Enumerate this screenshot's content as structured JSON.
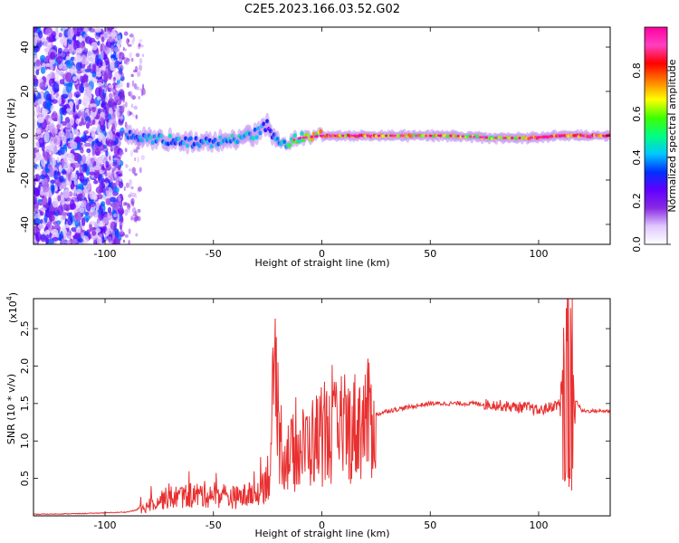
{
  "figure": {
    "title": "C2E5.2023.166.03.52.G02"
  },
  "chart_data": [
    {
      "type": "heatmap",
      "name": "spectrogram",
      "xlabel": "Height of straight line (km)",
      "ylabel": "Frequency (Hz)",
      "xlim": [
        -133,
        133
      ],
      "ylim": [
        -49,
        49
      ],
      "x_ticks": [
        -100,
        -50,
        0,
        50,
        100
      ],
      "y_ticks": [
        -40,
        -20,
        0,
        20,
        40
      ],
      "colorbar": {
        "label": "Normalized spectral amplitude",
        "range": [
          0.0,
          1.0
        ],
        "ticks": [
          0.0,
          0.2,
          0.4,
          0.6,
          0.8
        ],
        "tick_labels": [
          "0.0",
          "0.2",
          "0.4",
          "0.6",
          "0.8"
        ],
        "colormap": [
          "#ffffff",
          "#e0c8ff",
          "#8a2be2",
          "#6000ff",
          "#0030ff",
          "#00c8ff",
          "#00ff80",
          "#40ff00",
          "#ffff00",
          "#ff8000",
          "#ff0000",
          "#ff40c0",
          "#ff00a0"
        ]
      },
      "ridge": [
        {
          "x": -90,
          "y": 0,
          "amp": 0.35
        },
        {
          "x": -80,
          "y": -1,
          "amp": 0.4
        },
        {
          "x": -70,
          "y": -2,
          "amp": 0.4
        },
        {
          "x": -60,
          "y": -3,
          "amp": 0.38
        },
        {
          "x": -50,
          "y": -3,
          "amp": 0.4
        },
        {
          "x": -40,
          "y": -1,
          "amp": 0.42
        },
        {
          "x": -30,
          "y": 1,
          "amp": 0.42
        },
        {
          "x": -25,
          "y": 5,
          "amp": 0.3
        },
        {
          "x": -20,
          "y": -4,
          "amp": 0.4
        },
        {
          "x": -10,
          "y": -1,
          "amp": 0.55
        },
        {
          "x": 0,
          "y": 0,
          "amp": 0.7
        },
        {
          "x": 20,
          "y": 0,
          "amp": 0.78
        },
        {
          "x": 40,
          "y": 0,
          "amp": 0.68
        },
        {
          "x": 60,
          "y": 0,
          "amp": 0.65
        },
        {
          "x": 80,
          "y": -1,
          "amp": 0.6
        },
        {
          "x": 95,
          "y": -1,
          "amp": 0.72
        },
        {
          "x": 110,
          "y": 0,
          "amp": 0.82
        },
        {
          "x": 133,
          "y": 0,
          "amp": 0.85
        }
      ]
    },
    {
      "type": "line",
      "name": "snr",
      "xlabel": "Height of straight line (km)",
      "ylabel": "SNR (10 * v/v)",
      "y_multiplier": "(x10",
      "y_multiplier_exp": "4",
      "y_multiplier_close": ")",
      "xlim": [
        -133,
        133
      ],
      "ylim": [
        0,
        2.9
      ],
      "x_ticks": [
        -100,
        -50,
        0,
        50,
        100
      ],
      "y_ticks": [
        0.5,
        1.0,
        1.5,
        2.0,
        2.5
      ],
      "y_tick_labels": [
        "0.5",
        "1.0",
        "1.5",
        "2.0",
        "2.5"
      ],
      "color": "#e83030",
      "series": [
        {
          "x": [
            -133,
            -110,
            -90,
            -82,
            -78,
            -70,
            -60,
            -50,
            -40,
            -30,
            -24,
            -22,
            -20,
            -18,
            -15,
            -10,
            -5,
            0,
            10,
            20,
            30,
            40,
            50,
            60,
            70,
            80,
            90,
            95,
            100,
            105,
            110,
            112,
            114,
            116,
            120,
            133
          ],
          "y": [
            0.02,
            0.03,
            0.05,
            0.1,
            0.2,
            0.25,
            0.28,
            0.3,
            0.25,
            0.3,
            0.6,
            1.8,
            1.2,
            0.9,
            0.8,
            0.9,
            1.0,
            1.1,
            1.15,
            1.3,
            1.4,
            1.45,
            1.5,
            1.5,
            1.5,
            1.48,
            1.45,
            1.45,
            1.4,
            1.45,
            1.5,
            2.4,
            0.4,
            1.6,
            1.4,
            1.4
          ]
        }
      ]
    }
  ]
}
